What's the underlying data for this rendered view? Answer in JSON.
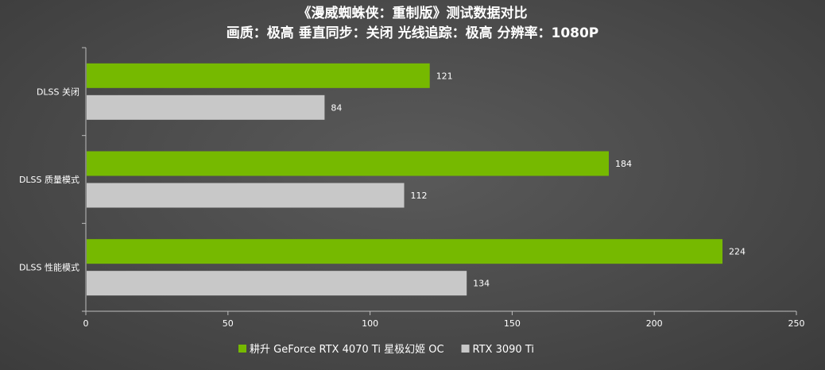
{
  "chart_data": {
    "type": "bar",
    "orientation": "horizontal",
    "title": "《漫威蜘蛛侠：重制版》测试数据对比",
    "subtitle": "画质：极高 垂直同步：关闭 光线追踪：极高 分辨率：1080P",
    "categories": [
      "DLSS 关闭",
      "DLSS 质量模式",
      "DLSS 性能模式"
    ],
    "series": [
      {
        "name": "耕升 GeForce RTX 4070 Ti 星极幻姬 OC",
        "color": "#76b900",
        "values": [
          121,
          184,
          224
        ]
      },
      {
        "name": "RTX 3090 Ti",
        "color": "#c8c8c8",
        "values": [
          84,
          112,
          134
        ]
      }
    ],
    "xlim": [
      0,
      250
    ],
    "xticks": [
      "0",
      "50",
      "100",
      "150",
      "200",
      "250"
    ],
    "grid": false,
    "legend_position": "bottom-center"
  }
}
